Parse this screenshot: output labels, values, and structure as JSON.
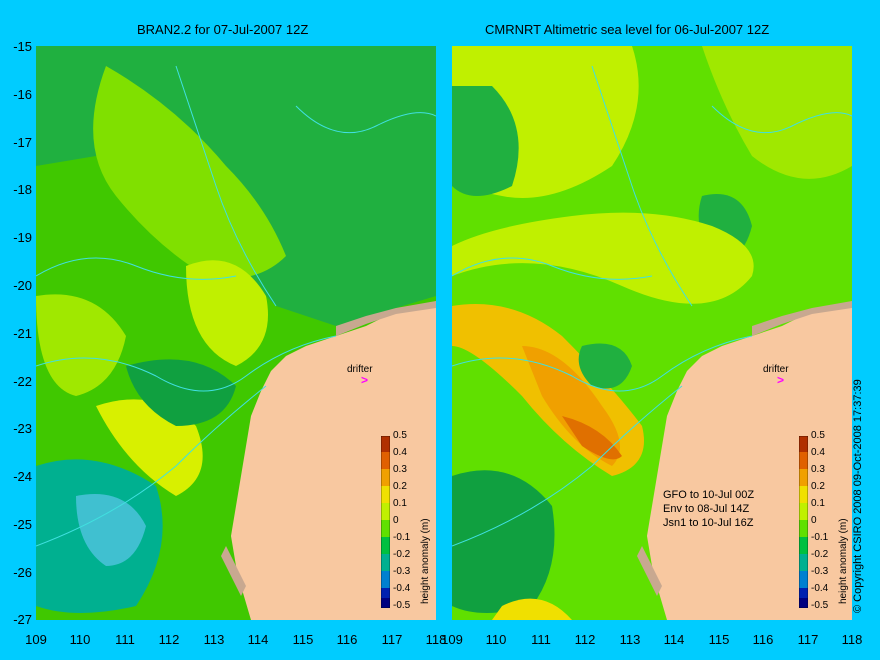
{
  "titles": {
    "left": "BRAN2.2 for 07-Jul-2007 12Z",
    "right": "CMRNRT Altimetric sea level  for 06-Jul-2007 12Z"
  },
  "axis": {
    "y_ticks": [
      "-15",
      "-16",
      "-17",
      "-18",
      "-19",
      "-20",
      "-21",
      "-22",
      "-23",
      "-24",
      "-25",
      "-26",
      "-27"
    ],
    "x_ticks": [
      "109",
      "110",
      "111",
      "112",
      "113",
      "114",
      "115",
      "116",
      "117",
      "118"
    ]
  },
  "colorbar": {
    "title": "height anomaly (m)",
    "ticks": [
      "0.5",
      "0.4",
      "0.3",
      "0.2",
      "0.1",
      "0",
      "-0.1",
      "-0.2",
      "-0.3",
      "-0.4",
      "-0.5"
    ],
    "colors": [
      "#b03000",
      "#e06000",
      "#f0a000",
      "#f0e000",
      "#c0f000",
      "#60e000",
      "#00c040",
      "#00b090",
      "#0080d0",
      "#0020b0",
      "#000080"
    ]
  },
  "labels": {
    "drifter": "drifter",
    "drifter_marker": ">",
    "satellites": [
      "GFO to 10-Jul 00Z",
      "Env to 08-Jul 14Z",
      "Jsn1 to 10-Jul 16Z"
    ],
    "copyright": "© Copyright CSIRO 2008  09-Oct-2008 17:37:39"
  },
  "map_colors": {
    "land": "#f8c8a0",
    "coast": "#c8a890",
    "contour": "#40e0e0"
  }
}
